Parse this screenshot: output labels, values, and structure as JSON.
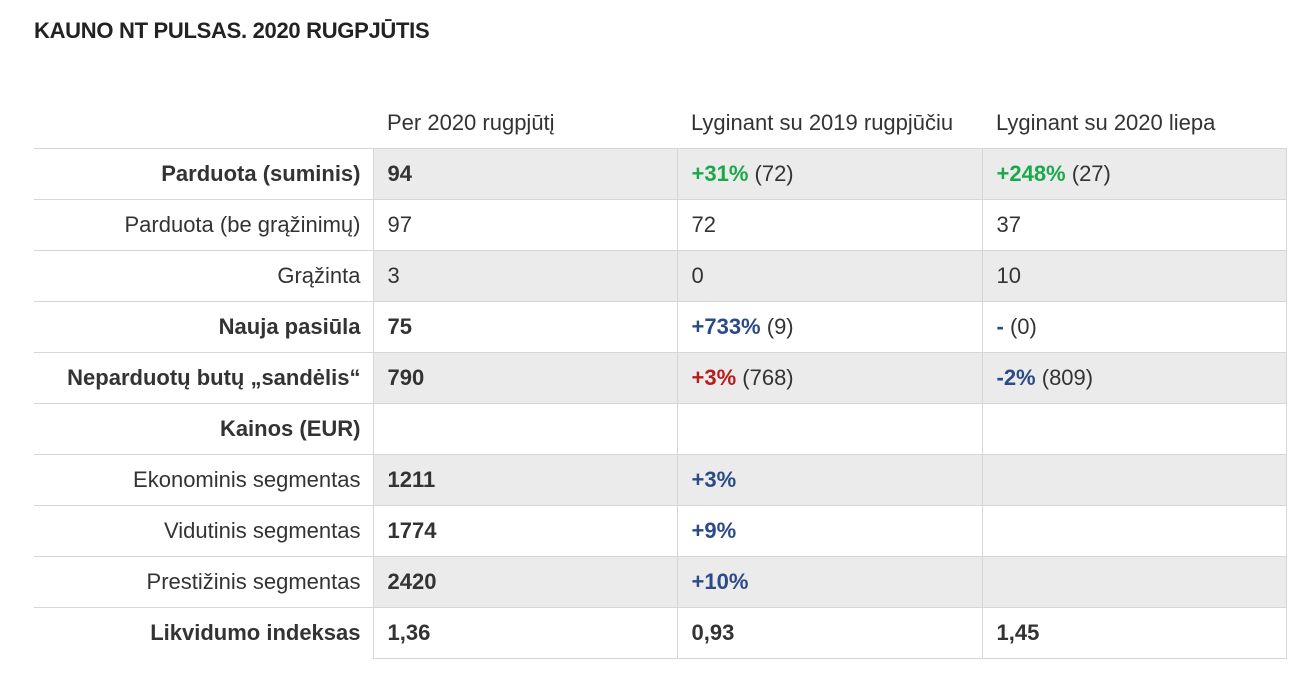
{
  "title": "KAUNO NT PULSAS. 2020 RUGPJŪTIS",
  "headers": [
    "",
    "Per 2020 rugpjūtį",
    "Lyginant su 2019 rugpjūčiu",
    "Lyginant su 2020 liepa"
  ],
  "rows": [
    {
      "label": "Parduota (suminis)",
      "label_bold": true,
      "c1": "94",
      "c1_bold": true,
      "c2_pct": "+31%",
      "c2_paren": " (72)",
      "c3_pct": "+248%",
      "c3_paren": " (27)"
    },
    {
      "label": "Parduota (be grąžinimų)",
      "c1": "97",
      "c2": "72",
      "c3": "37"
    },
    {
      "label": "Grąžinta",
      "c1": "3",
      "c2": "0",
      "c3": "10"
    },
    {
      "label": "Nauja pasiūla",
      "label_bold": true,
      "c1": "75",
      "c1_bold": true,
      "c2_pct": "+733%",
      "c2_paren": " (9)",
      "c3_pct": "-",
      "c3_paren": " (0)"
    },
    {
      "label": "Neparduotų butų „sandėlis“",
      "label_bold": true,
      "c1": "790",
      "c1_bold": true,
      "c2_pct": "+3%",
      "c2_paren": " (768)",
      "c3_pct": "-2%",
      "c3_paren": " (809)"
    },
    {
      "label": "Kainos (EUR)",
      "label_bold": true,
      "c1": "",
      "c2": "",
      "c3": ""
    },
    {
      "label": "Ekonominis segmentas",
      "c1": "1211",
      "c1_bold": true,
      "c2_pct": "+3%",
      "c3": ""
    },
    {
      "label": "Vidutinis segmentas",
      "c1": "1774",
      "c1_bold": true,
      "c2_pct": "+9%",
      "c3": ""
    },
    {
      "label": "Prestižinis segmentas",
      "c1": "2420",
      "c1_bold": true,
      "c2_pct": "+10%",
      "c3": ""
    },
    {
      "label": "Likvidumo indeksas",
      "label_bold": true,
      "c1": "1,36",
      "c1_bold": true,
      "c2": "0,93",
      "c2_bold": true,
      "c3": "1,45",
      "c3_bold": true
    }
  ],
  "colors": {
    "positive_green": "#1aa84b",
    "accent_blue": "#2b4a87",
    "negative_red": "#b71c1c",
    "row_shade": "#ebebeb"
  }
}
